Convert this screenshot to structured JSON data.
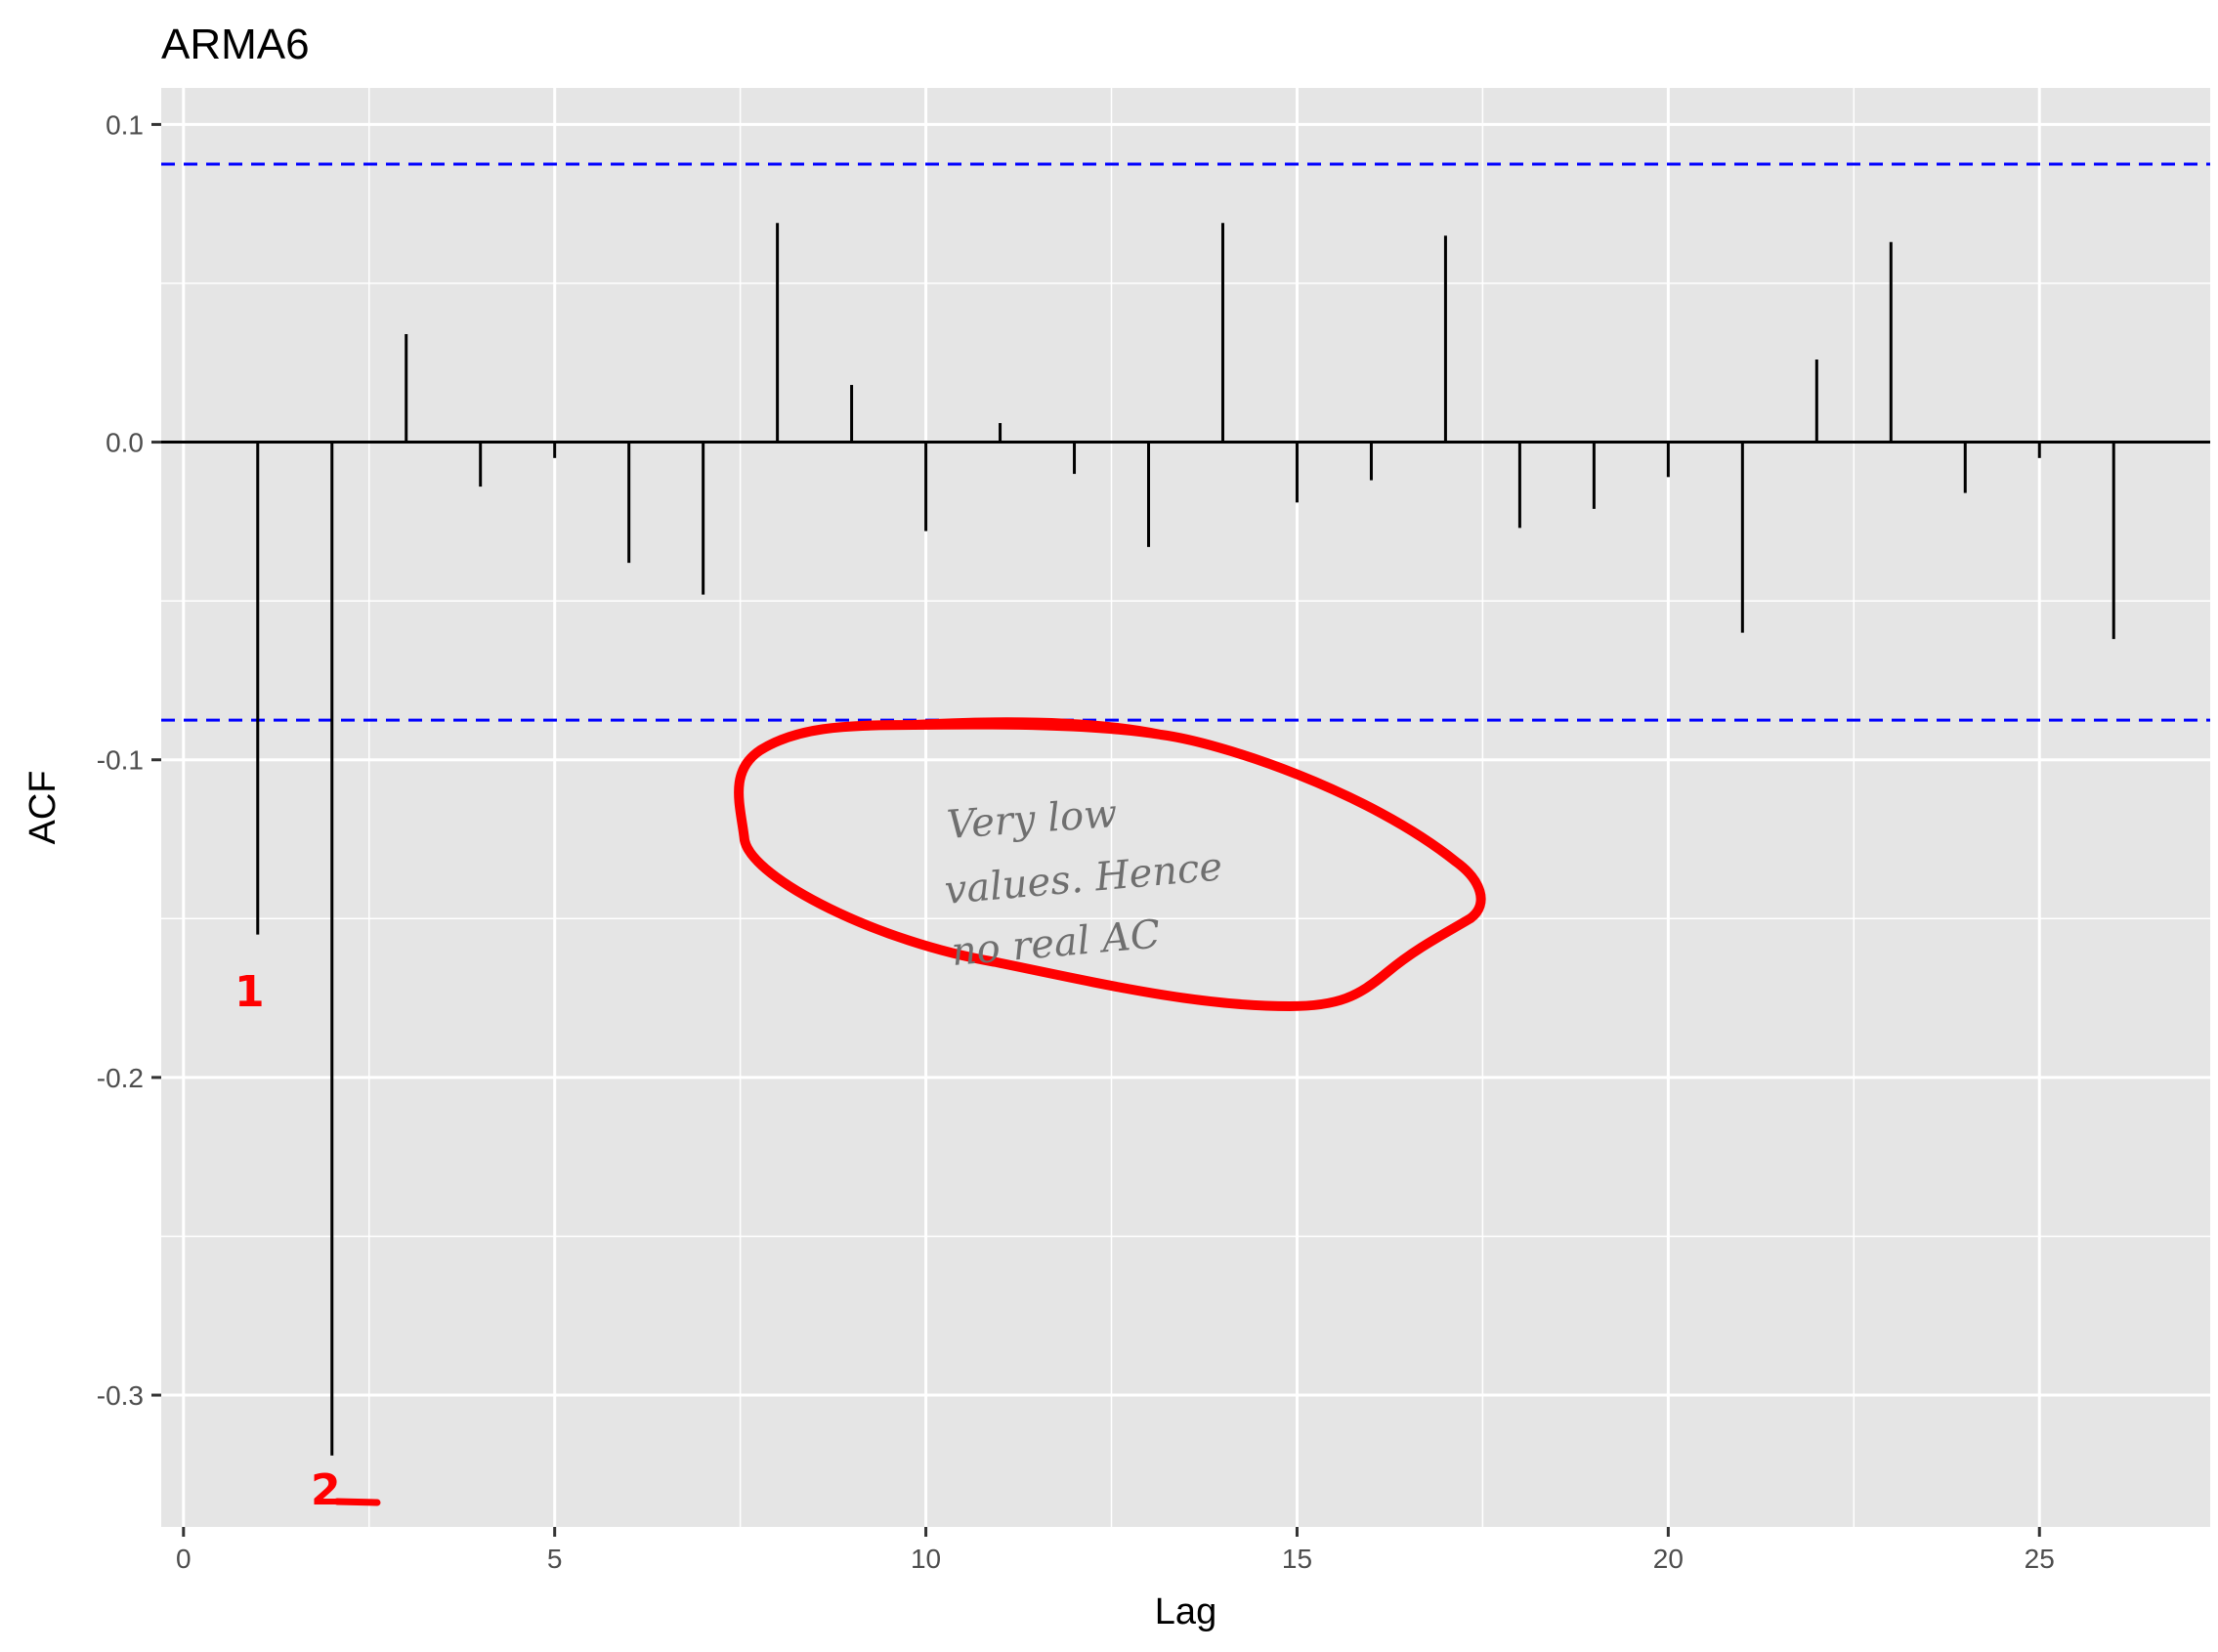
{
  "chart_data": {
    "type": "bar",
    "title": "ARMA6",
    "xlabel": "Lag",
    "ylabel": "ACF",
    "x": [
      1,
      2,
      3,
      4,
      5,
      6,
      7,
      8,
      9,
      10,
      11,
      12,
      13,
      14,
      15,
      16,
      17,
      18,
      19,
      20,
      21,
      22,
      23,
      24,
      25,
      26
    ],
    "values": [
      -0.155,
      -0.319,
      0.034,
      -0.014,
      -0.005,
      -0.038,
      -0.048,
      0.069,
      0.018,
      -0.028,
      0.006,
      -0.01,
      -0.033,
      0.069,
      -0.019,
      -0.012,
      0.065,
      -0.027,
      -0.021,
      -0.011,
      -0.06,
      0.026,
      0.063,
      -0.016,
      -0.005,
      -0.062
    ],
    "xlim": [
      -0.3,
      27.3
    ],
    "ylim": [
      -0.3415,
      0.1115
    ],
    "xticks": [
      0,
      5,
      10,
      15,
      20,
      25
    ],
    "xtick_labels": [
      "0",
      "5",
      "10",
      "15",
      "20",
      "25"
    ],
    "yticks": [
      0.1,
      0.0,
      -0.1,
      -0.2,
      -0.3
    ],
    "ytick_labels": [
      "0.1",
      "0.0",
      "-0.1",
      "-0.2",
      "-0.3"
    ],
    "confidence_bounds": [
      0.0875,
      -0.0875
    ],
    "grid": true,
    "colors": {
      "panel": "#e5e5e5",
      "grid": "#ffffff",
      "bars": "#000000",
      "bounds": "#0000ff",
      "annotation": "#ff0000"
    },
    "annotations": {
      "note_lines": [
        "Very low",
        "values. Hence",
        "no real AC"
      ],
      "lag1_mark": "1",
      "lag2_mark": "2"
    }
  }
}
